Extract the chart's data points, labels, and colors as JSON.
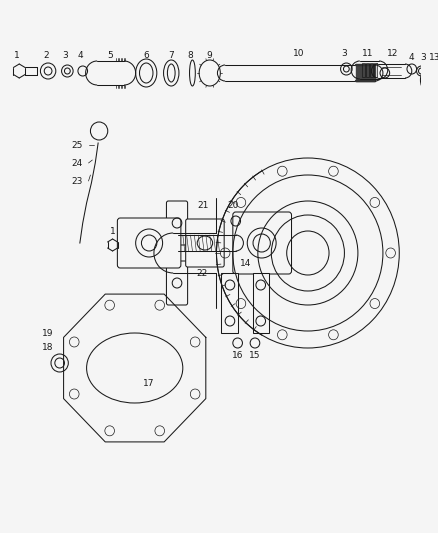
{
  "bg_color": "#f5f5f5",
  "fig_width": 4.38,
  "fig_height": 5.33,
  "dpi": 100,
  "line_color": "#1a1a1a",
  "label_fontsize": 6.5,
  "lw": 0.75
}
